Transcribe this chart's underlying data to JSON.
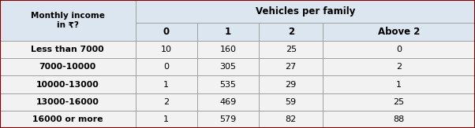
{
  "col_headers_row1": [
    "Monthly income\nin ₹?",
    "Vehicles per family",
    "",
    "",
    ""
  ],
  "col_headers_row2": [
    "",
    "0",
    "1",
    "2",
    "Above 2"
  ],
  "rows": [
    [
      "Less than 7000",
      "10",
      "160",
      "25",
      "0"
    ],
    [
      "7000-10000",
      "0",
      "305",
      "27",
      "2"
    ],
    [
      "10000-13000",
      "1",
      "535",
      "29",
      "1"
    ],
    [
      "13000-16000",
      "2",
      "469",
      "59",
      "25"
    ],
    [
      "16000 or more",
      "1",
      "579",
      "82",
      "88"
    ]
  ],
  "header_bg": "#dce6f1",
  "row_bg": "#f2f2f2",
  "border_color": "#a0a0a0",
  "text_color": "#000000",
  "bold_header": true,
  "fig_width": 6.02,
  "fig_height": 1.63
}
